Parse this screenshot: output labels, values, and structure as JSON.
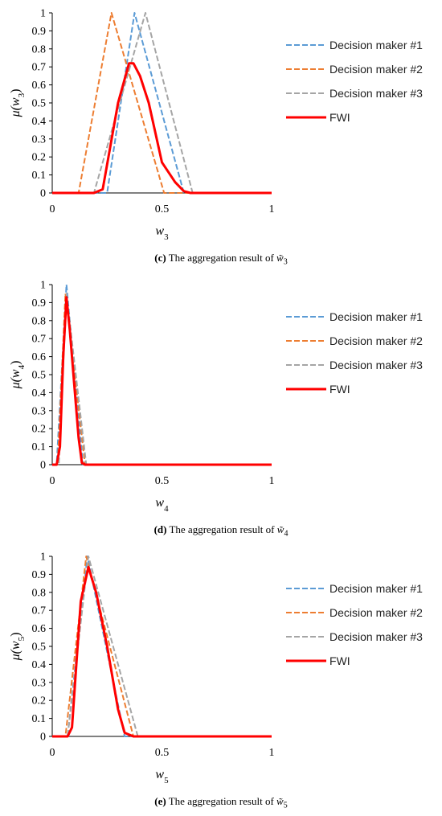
{
  "colors": {
    "dm1": "#5B9BD5",
    "dm2": "#ED7D31",
    "dm3": "#A5A5A5",
    "fwi": "#FF0000"
  },
  "chart_data": [
    {
      "type": "line",
      "caption_letter": "(c)",
      "caption_text": "The aggregation result of",
      "variable_sub": "3",
      "xlim": [
        0,
        1
      ],
      "ylim": [
        0,
        1
      ],
      "xticks": [
        "0",
        "0.5",
        "1"
      ],
      "yticks": [
        "0",
        "0.1",
        "0.2",
        "0.3",
        "0.4",
        "0.5",
        "0.6",
        "0.7",
        "0.8",
        "0.9",
        "1"
      ],
      "legend_position": "right",
      "series": [
        {
          "name": "Decision maker #1",
          "style": "dashed",
          "color": "dm1",
          "x": [
            0,
            0.25,
            0.375,
            0.6,
            1
          ],
          "y": [
            0,
            0,
            1,
            0,
            0
          ]
        },
        {
          "name": "Decision maker #2",
          "style": "dashed",
          "color": "dm2",
          "x": [
            0,
            0.12,
            0.27,
            0.51,
            1
          ],
          "y": [
            0,
            0,
            1,
            0,
            0
          ]
        },
        {
          "name": "Decision maker #3",
          "style": "dashed",
          "color": "dm3",
          "x": [
            0,
            0.19,
            0.425,
            0.64,
            1
          ],
          "y": [
            0,
            0,
            1,
            0,
            0
          ]
        },
        {
          "name": "FWI",
          "style": "solid",
          "color": "fwi",
          "x": [
            0,
            0.19,
            0.23,
            0.3,
            0.35,
            0.37,
            0.4,
            0.44,
            0.5,
            0.56,
            0.6,
            0.63,
            1
          ],
          "y": [
            0,
            0,
            0.02,
            0.5,
            0.72,
            0.72,
            0.65,
            0.5,
            0.17,
            0.06,
            0.01,
            0,
            0
          ]
        }
      ]
    },
    {
      "type": "line",
      "caption_letter": "(d)",
      "caption_text": "The aggregation result of",
      "variable_sub": "4",
      "xlim": [
        0,
        1
      ],
      "ylim": [
        0,
        1
      ],
      "xticks": [
        "0",
        "0.5",
        "1"
      ],
      "yticks": [
        "0",
        "0.1",
        "0.2",
        "0.3",
        "0.4",
        "0.5",
        "0.6",
        "0.7",
        "0.8",
        "0.9",
        "1"
      ],
      "legend_position": "right",
      "series": [
        {
          "name": "Decision maker #1",
          "style": "dashed",
          "color": "dm1",
          "x": [
            0,
            0.02,
            0.065,
            0.14,
            1
          ],
          "y": [
            0,
            0,
            1,
            0,
            0
          ]
        },
        {
          "name": "Decision maker #2",
          "style": "dashed",
          "color": "dm2",
          "x": [
            0,
            0.025,
            0.06,
            0.15,
            1
          ],
          "y": [
            0,
            0,
            0.95,
            0,
            0
          ]
        },
        {
          "name": "Decision maker #3",
          "style": "dashed",
          "color": "dm3",
          "x": [
            0,
            0.03,
            0.065,
            0.155,
            1
          ],
          "y": [
            0,
            0,
            0.95,
            0,
            0
          ]
        },
        {
          "name": "FWI",
          "style": "solid",
          "color": "fwi",
          "x": [
            0,
            0.02,
            0.035,
            0.05,
            0.065,
            0.08,
            0.1,
            0.12,
            0.135,
            0.15,
            1
          ],
          "y": [
            0,
            0,
            0.1,
            0.6,
            0.93,
            0.75,
            0.45,
            0.15,
            0.01,
            0,
            0
          ]
        }
      ]
    },
    {
      "type": "line",
      "caption_letter": "(e)",
      "caption_text": "The aggregation result of",
      "variable_sub": "5",
      "xlim": [
        0,
        1
      ],
      "ylim": [
        0,
        1
      ],
      "xticks": [
        "0",
        "0.5",
        "1"
      ],
      "yticks": [
        "0",
        "0.1",
        "0.2",
        "0.3",
        "0.4",
        "0.5",
        "0.6",
        "0.7",
        "0.8",
        "0.9",
        "1"
      ],
      "legend_position": "right",
      "series": [
        {
          "name": "Decision maker #1",
          "style": "dashed",
          "color": "dm1",
          "x": [
            0,
            0.07,
            0.16,
            0.33,
            1
          ],
          "y": [
            0,
            0,
            1,
            0,
            0
          ]
        },
        {
          "name": "Decision maker #2",
          "style": "dashed",
          "color": "dm2",
          "x": [
            0,
            0.06,
            0.155,
            0.37,
            1
          ],
          "y": [
            0,
            0,
            1,
            0,
            0
          ]
        },
        {
          "name": "Decision maker #3",
          "style": "dashed",
          "color": "dm3",
          "x": [
            0,
            0.07,
            0.165,
            0.39,
            1
          ],
          "y": [
            0,
            0,
            1,
            0,
            0
          ]
        },
        {
          "name": "FWI",
          "style": "solid",
          "color": "fwi",
          "x": [
            0,
            0.07,
            0.09,
            0.11,
            0.13,
            0.165,
            0.2,
            0.25,
            0.3,
            0.33,
            0.37,
            1
          ],
          "y": [
            0,
            0,
            0.05,
            0.4,
            0.75,
            0.94,
            0.8,
            0.5,
            0.15,
            0.02,
            0,
            0
          ]
        }
      ]
    }
  ]
}
